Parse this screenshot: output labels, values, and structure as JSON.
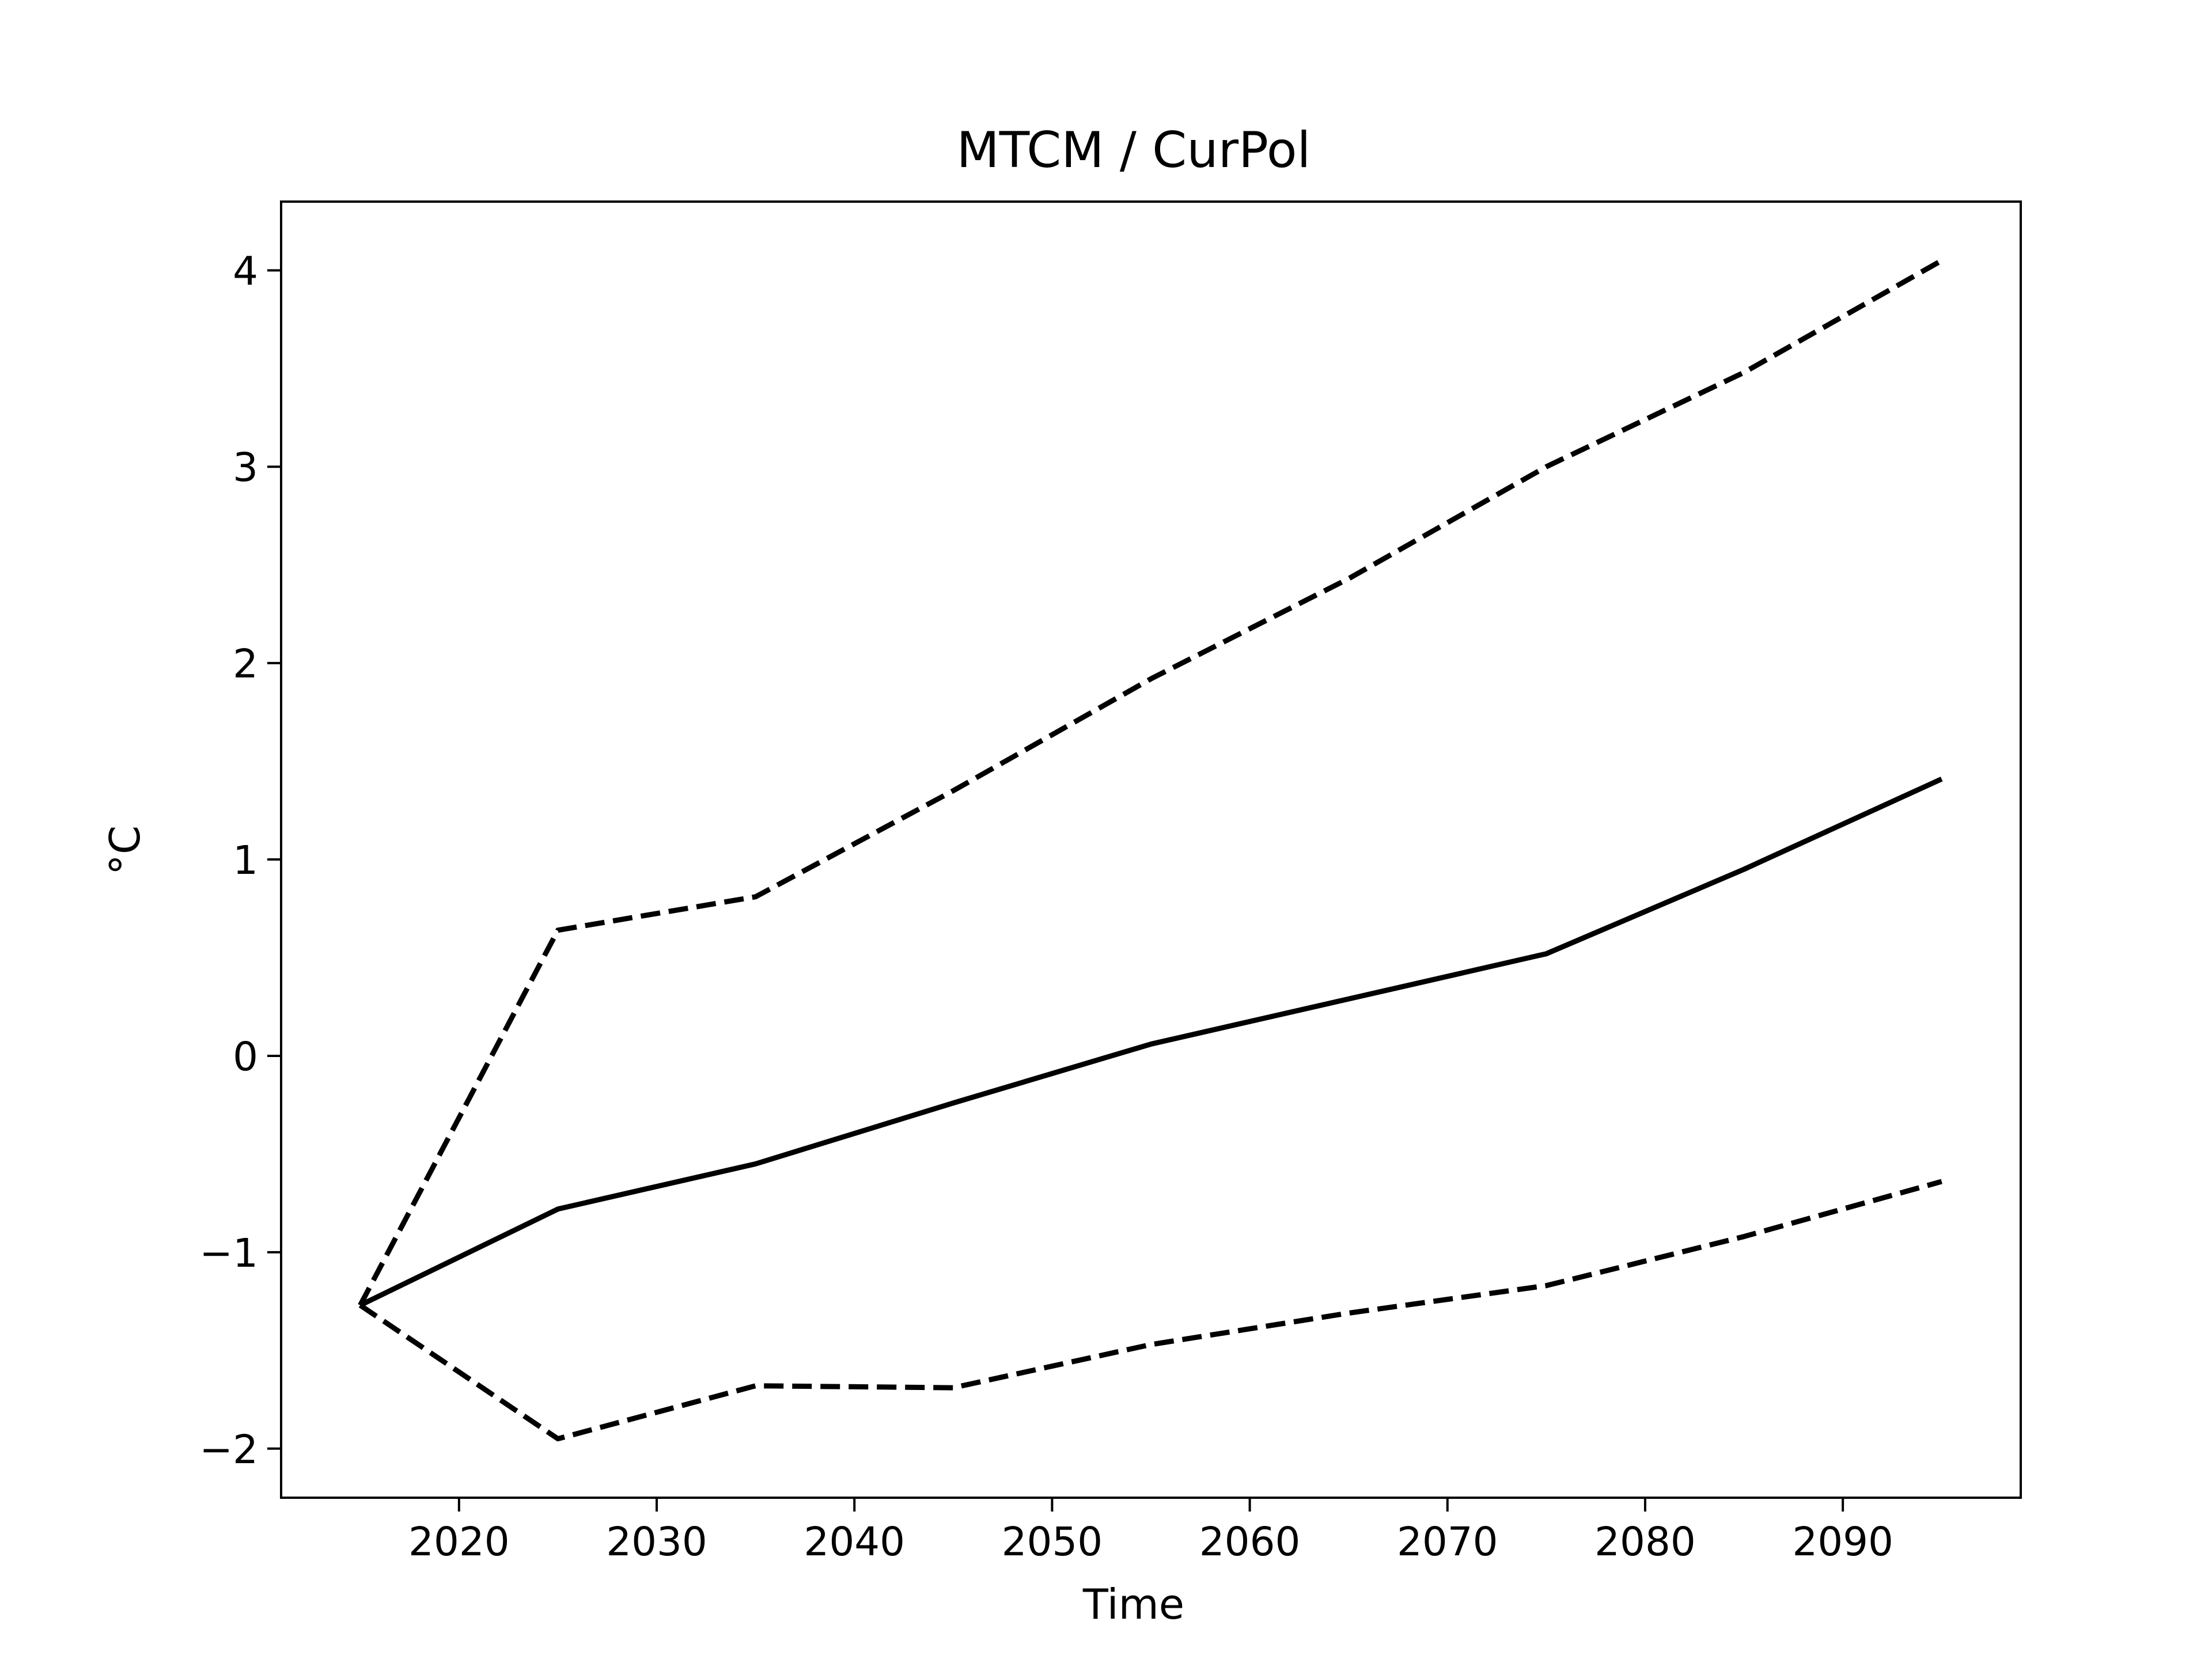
{
  "chart_data": {
    "type": "line",
    "title": "MTCM / CurPol",
    "xlabel": "Time",
    "ylabel": "°C",
    "xlim": [
      2011,
      2099
    ],
    "ylim": [
      -2.25,
      4.35
    ],
    "x_ticks": [
      2020,
      2030,
      2040,
      2050,
      2060,
      2070,
      2080,
      2090
    ],
    "x_tick_labels": [
      "2020",
      "2030",
      "2040",
      "2050",
      "2060",
      "2070",
      "2080",
      "2090"
    ],
    "y_ticks": [
      -2,
      -1,
      0,
      1,
      2,
      3,
      4
    ],
    "y_tick_labels": [
      "−2",
      "−1",
      "0",
      "1",
      "2",
      "3",
      "4"
    ],
    "grid": false,
    "x": [
      2015,
      2025,
      2035,
      2045,
      2055,
      2065,
      2075,
      2085,
      2095
    ],
    "series": [
      {
        "style": "dashed",
        "color": "#000000",
        "values": [
          -1.27,
          0.64,
          0.81,
          1.35,
          1.92,
          2.43,
          3.0,
          3.48,
          4.05
        ]
      },
      {
        "style": "solid",
        "color": "#000000",
        "values": [
          -1.27,
          -0.78,
          -0.55,
          -0.24,
          0.06,
          0.29,
          0.52,
          0.95,
          1.41
        ]
      },
      {
        "style": "dashed",
        "color": "#000000",
        "values": [
          -1.27,
          -1.95,
          -1.68,
          -1.69,
          -1.47,
          -1.31,
          -1.17,
          -0.92,
          -0.64
        ]
      }
    ]
  }
}
